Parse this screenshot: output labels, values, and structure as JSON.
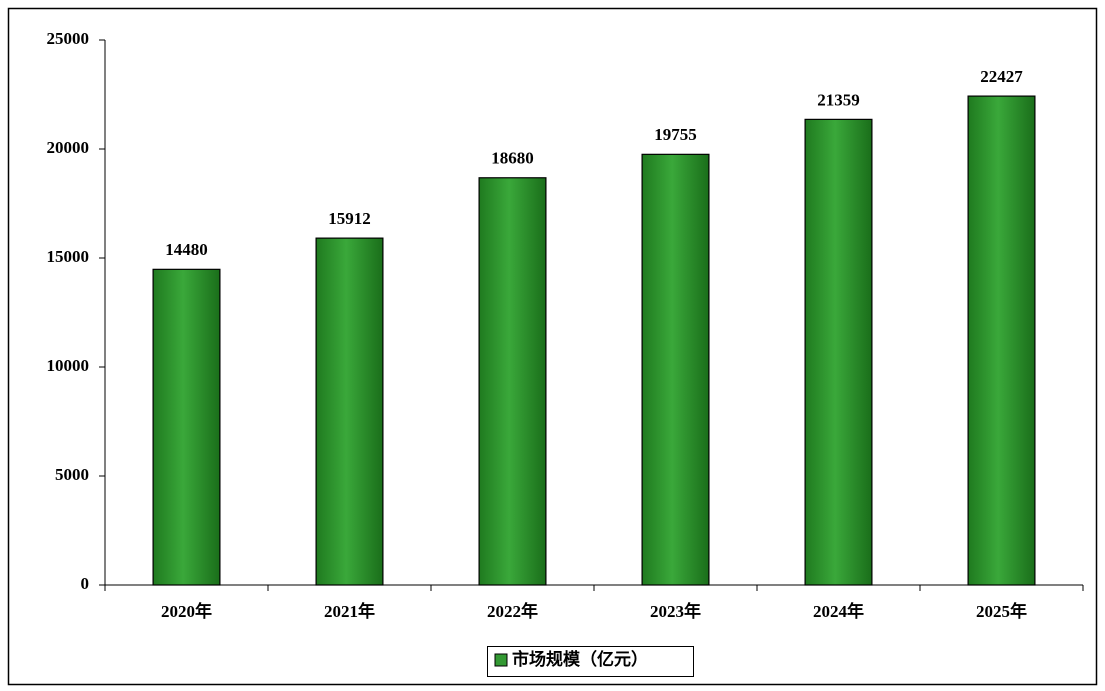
{
  "chart_data": {
    "type": "bar",
    "categories": [
      "2020年",
      "2021年",
      "2022年",
      "2023年",
      "2024年",
      "2025年"
    ],
    "series": [
      {
        "name": "市场规模（亿元）",
        "color": "#339933",
        "values": [
          14480,
          15912,
          18680,
          19755,
          21359,
          22427
        ]
      }
    ],
    "ylim": [
      0,
      25000
    ],
    "yticks": [
      0,
      5000,
      10000,
      15000,
      20000,
      25000
    ],
    "grid": false,
    "legend": "bottom"
  }
}
